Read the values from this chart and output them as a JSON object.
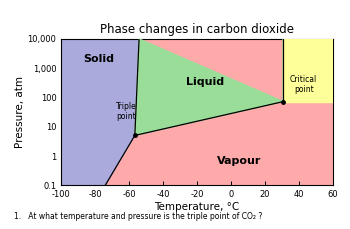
{
  "title": "Phase changes in carbon dioxide",
  "xlabel": "Temperature, °C",
  "ylabel": "Pressure, atm",
  "xlim": [
    -100,
    60
  ],
  "ylim_log": [
    0.1,
    10000
  ],
  "triple_point": {
    "T": -56.6,
    "P": 5.1
  },
  "critical_point": {
    "T": 31.0,
    "P": 72.9
  },
  "solid_color": "#aaaadd",
  "liquid_color": "#99dd99",
  "vapor_color": "#ffaaaa",
  "supercritical_color": "#ffff99",
  "solid_label": "Solid",
  "liquid_label": "Liquid",
  "vapor_label": "Vapour",
  "triple_label": "Triple\npoint",
  "critical_label": "Critical\npoint",
  "yticks": [
    0.1,
    1,
    10,
    100,
    1000,
    10000
  ],
  "ytick_labels": [
    "0.1",
    "1",
    "10",
    "100",
    "1,000",
    "10,000"
  ],
  "xticks": [
    -100,
    -80,
    -60,
    -40,
    -20,
    0,
    20,
    40,
    60
  ],
  "question": "1.   At what temperature and pressure is the triple point of CO₂ ?"
}
